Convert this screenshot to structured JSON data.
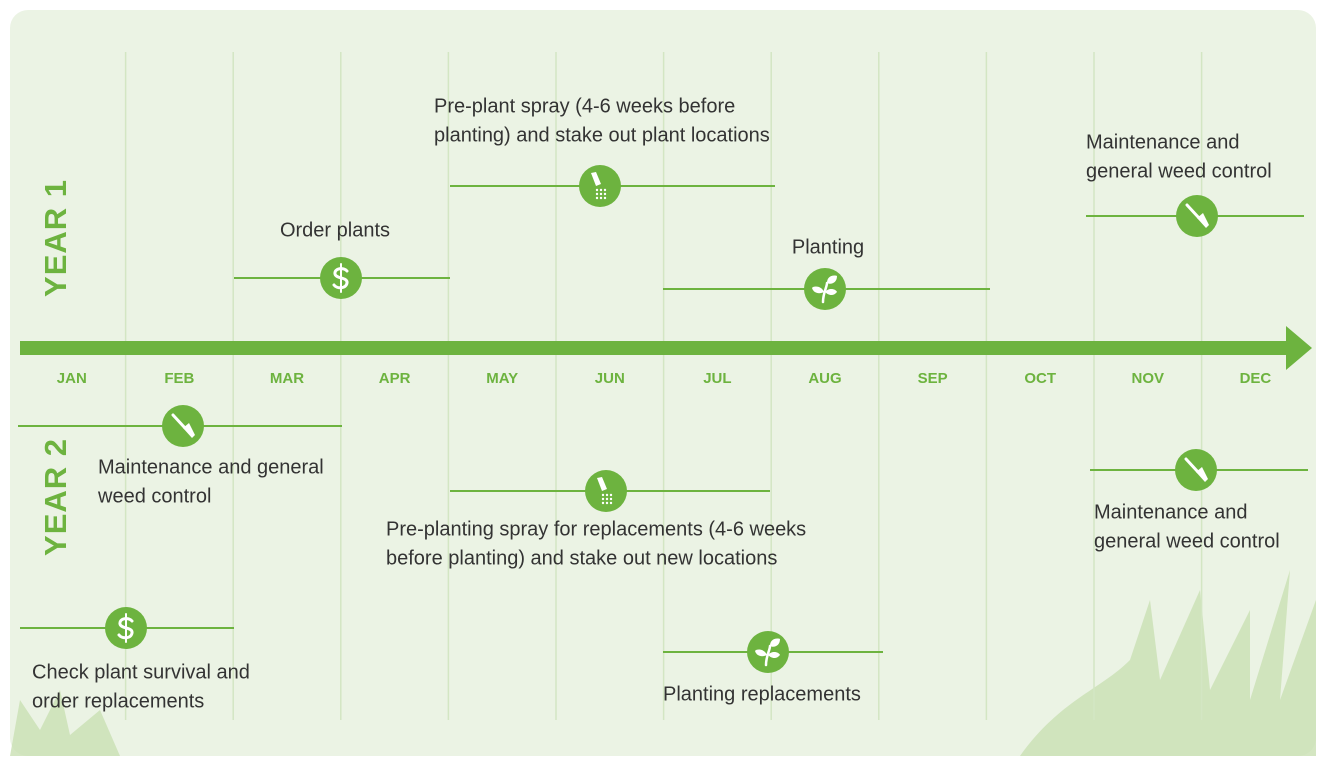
{
  "year_labels": [
    "YEAR 1",
    "YEAR 2"
  ],
  "months": [
    "JAN",
    "FEB",
    "MAR",
    "APR",
    "MAY",
    "JUN",
    "JUL",
    "AUG",
    "SEP",
    "OCT",
    "NOV",
    "DEC"
  ],
  "tasks": [
    {
      "label": [
        "Order plants"
      ]
    },
    {
      "label": [
        "Pre-plant spray (4-6 weeks before",
        "planting) and stake out plant locations"
      ]
    },
    {
      "label": [
        "Planting"
      ]
    },
    {
      "label": [
        "Maintenance and",
        "general weed control"
      ]
    },
    {
      "label": [
        "Maintenance and general",
        "weed control"
      ]
    },
    {
      "label": [
        "Pre-planting spray for replacements (4-6 weeks",
        "before planting) and stake out new locations"
      ]
    },
    {
      "label": [
        "Maintenance and",
        "general weed control"
      ]
    },
    {
      "label": [
        "Check plant survival and",
        "order replacements"
      ]
    },
    {
      "label": [
        "Planting replacements"
      ]
    }
  ]
}
